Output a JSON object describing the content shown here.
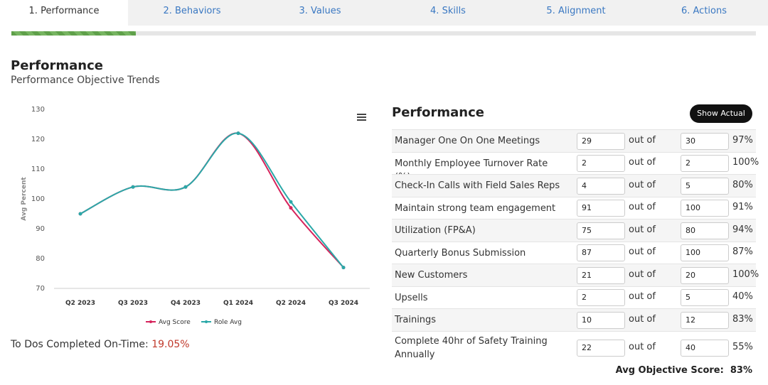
{
  "tabs": [
    "1. Performance",
    "2. Behaviors",
    "3. Values",
    "4. Skills",
    "5. Alignment",
    "6. Actions"
  ],
  "active_tab": 0,
  "header": {
    "title": "Performance",
    "subtitle": "Performance Objective Trends"
  },
  "chart_data": {
    "type": "line",
    "categories": [
      "Q2 2023",
      "Q3 2023",
      "Q4 2023",
      "Q1 2024",
      "Q2 2024",
      "Q3 2024"
    ],
    "ylabel": "Avg Percent",
    "ylim": [
      70,
      130
    ],
    "yticks": [
      70,
      80,
      90,
      100,
      110,
      120,
      130
    ],
    "grid": false,
    "series": [
      {
        "name": "Avg Score",
        "color": "#d6245c",
        "values": [
          95,
          104,
          104,
          122,
          97,
          77
        ]
      },
      {
        "name": "Role Avg",
        "color": "#2ba8a8",
        "values": [
          95,
          104,
          104,
          122,
          99,
          77
        ]
      }
    ]
  },
  "todos": {
    "label": "To Dos Completed On-Time:",
    "value": "19.05%"
  },
  "panel": {
    "title": "Performance",
    "button": "Show Actual",
    "out_of": "out of",
    "rows": [
      [
        "Manager One On One Meetings",
        "29",
        "30",
        "97%"
      ],
      [
        "Monthly Employee Turnover Rate (%)",
        "2",
        "2",
        "100%"
      ],
      [
        "Check-In Calls with Field Sales Reps",
        "4",
        "5",
        "80%"
      ],
      [
        "Maintain strong team engagement",
        "91",
        "100",
        "91%"
      ],
      [
        "Utilization (FP&A)",
        "75",
        "80",
        "94%"
      ],
      [
        "Quarterly Bonus Submission",
        "87",
        "100",
        "87%"
      ],
      [
        "New Customers",
        "21",
        "20",
        "100%"
      ],
      [
        "Upsells",
        "2",
        "5",
        "40%"
      ],
      [
        "Trainings",
        "10",
        "12",
        "83%"
      ],
      [
        "Complete 40hr of Safety Training Annually",
        "22",
        "40",
        "55%"
      ]
    ],
    "footer_label": "Avg Objective Score:",
    "footer_value": "83%"
  }
}
